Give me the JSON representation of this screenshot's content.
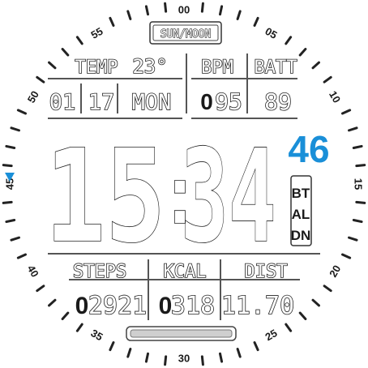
{
  "dial": {
    "numbers": [
      "00",
      "05",
      "10",
      "15",
      "20",
      "25",
      "30",
      "35",
      "40",
      "45",
      "50",
      "55"
    ],
    "active_marker": "45",
    "marker_icon": "triangle-marker-icon",
    "accent_color": "#1a8fd8"
  },
  "header": {
    "mode_label": "SUN/MOON"
  },
  "weather": {
    "temp_label": "TEMP",
    "temp_value": "23°"
  },
  "date": {
    "day": "01",
    "month_num": "17",
    "weekday": "MON"
  },
  "heart": {
    "label": "BPM",
    "value": "095",
    "value_dim": "0",
    "value_main": "95"
  },
  "battery": {
    "label": "BATT",
    "value": "89"
  },
  "time": {
    "hours": "15",
    "minutes": "34",
    "seconds": "46"
  },
  "status": {
    "line1": "BT",
    "line2": "AL",
    "line3": "DN"
  },
  "steps": {
    "label": "STEPS",
    "value": "02921",
    "value_dim": "0",
    "value_main": "2921"
  },
  "kcal": {
    "label": "KCAL",
    "value": "0318",
    "value_dim": "0",
    "value_main": "318"
  },
  "distance": {
    "label": "DIST",
    "value": "11.70"
  }
}
